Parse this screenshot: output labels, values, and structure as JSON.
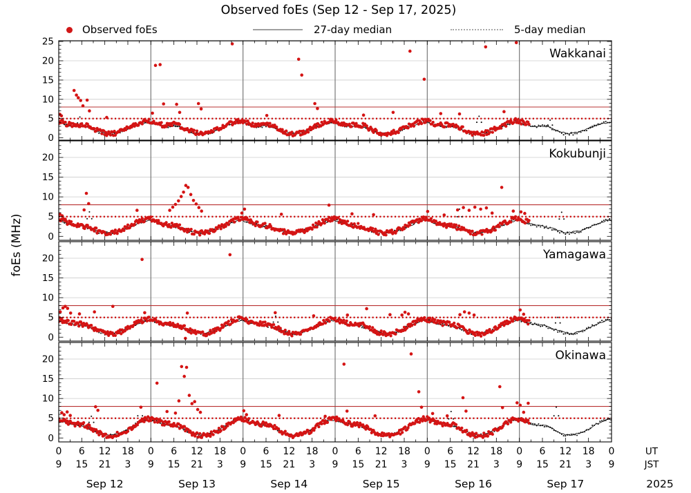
{
  "title": "Observed foEs (Sep 12 - Sep 17, 2025)",
  "legend": [
    {
      "label": "Observed foEs",
      "marker": "red-dot",
      "color": "#d11717"
    },
    {
      "label": "27-day median",
      "marker": "solid-line",
      "color": "#a0a0a0"
    },
    {
      "label": "5-day median",
      "marker": "dotted-line",
      "color": "#a8a8a8"
    }
  ],
  "y_axis_label": "foEs (MHz)",
  "colors": {
    "observed": "#d41414",
    "median_line": "#111111",
    "median5_dots": "#111111",
    "threshold_solid_red": "#b83030",
    "threshold_dotted_red": "#cc0000",
    "day_line": "#787878",
    "grid_line": "#cbcbcb"
  },
  "x_axis": {
    "ut_tick_labels": [
      0,
      6,
      12,
      18
    ],
    "jst_tick_labels": [
      9,
      15,
      21,
      3
    ],
    "final_tick": {
      "ut": 0,
      "jst": 9
    },
    "unit_labels": [
      "UT",
      "JST"
    ],
    "dates": [
      "Sep 12",
      "Sep 13",
      "Sep 14",
      "Sep 15",
      "Sep 16",
      "Sep 17"
    ],
    "year": "2025",
    "hours_total": 144
  },
  "chart_data": {
    "type": "scatter",
    "title": "Observed foEs (Sep 12 - Sep 17, 2025)",
    "ylabel": "foEs (MHz)",
    "x_hours_total": 144,
    "observed_end_hour": 122.5,
    "thresholds": {
      "upper_solid_mhz": 8,
      "lower_dotted_mhz": 5
    },
    "panels": [
      {
        "station": "Wakkanai",
        "ylim": [
          -0.6,
          25.2
        ],
        "ytick_labels": [
          0,
          5,
          10,
          15,
          20,
          25
        ],
        "grid_max": 25,
        "observed_daily": [
          4.3,
          4.0,
          3.6,
          3.4,
          3.3,
          3.4,
          3.5,
          3.3,
          2.9,
          2.4,
          1.9,
          1.5,
          1.2,
          1.0,
          1.1,
          1.3,
          1.6,
          2.0,
          2.5,
          3.0,
          3.4,
          3.8,
          4.1,
          4.4
        ],
        "observed_spikes": [
          [
            0.3,
            6.1
          ],
          [
            0.7,
            5.7
          ],
          [
            4.0,
            12.3
          ],
          [
            4.6,
            11.1
          ],
          [
            5.1,
            10.4
          ],
          [
            5.7,
            9.7
          ],
          [
            6.3,
            8.3
          ],
          [
            7.4,
            9.8
          ],
          [
            8.0,
            7.0
          ],
          [
            12.5,
            5.3
          ],
          [
            24.4,
            6.4
          ],
          [
            25.2,
            18.8
          ],
          [
            26.4,
            19.0
          ],
          [
            27.3,
            8.8
          ],
          [
            30.7,
            8.7
          ],
          [
            31.5,
            6.6
          ],
          [
            36.4,
            8.9
          ],
          [
            37.1,
            7.5
          ],
          [
            45.2,
            24.4
          ],
          [
            54.2,
            5.8
          ],
          [
            62.5,
            20.4
          ],
          [
            63.3,
            16.3
          ],
          [
            66.7,
            8.9
          ],
          [
            67.4,
            7.6
          ],
          [
            79.4,
            5.9
          ],
          [
            87.1,
            6.6
          ],
          [
            91.5,
            22.5
          ],
          [
            95.2,
            15.2
          ],
          [
            99.5,
            6.3
          ],
          [
            104.4,
            6.2
          ],
          [
            111.2,
            23.6
          ],
          [
            116.0,
            6.8
          ],
          [
            119.2,
            24.7
          ]
        ],
        "median27_daily": [
          3.9,
          3.6,
          3.3,
          3.1,
          3.0,
          3.0,
          3.1,
          3.0,
          2.7,
          2.3,
          1.9,
          1.5,
          1.3,
          1.2,
          1.3,
          1.5,
          1.7,
          2.1,
          2.5,
          2.9,
          3.2,
          3.5,
          3.7,
          3.9
        ],
        "median5_daily": [
          4.1,
          3.7,
          3.3,
          3.0,
          2.9,
          3.0,
          3.2,
          3.0,
          2.6,
          2.1,
          1.6,
          1.2,
          1.0,
          0.9,
          1.0,
          1.2,
          1.5,
          1.9,
          2.4,
          2.9,
          3.3,
          3.6,
          3.9,
          4.1
        ],
        "median5_spikes": [
          [
            5.5,
            5.4
          ],
          [
            109.5,
            5.6
          ],
          [
            128.0,
            4.6
          ]
        ]
      },
      {
        "station": "Kokubunji",
        "ylim": [
          -1,
          24.2
        ],
        "ytick_labels": [
          0,
          5,
          10,
          15,
          20
        ],
        "grid_max": 20,
        "observed_daily": [
          4.4,
          4.1,
          3.7,
          3.3,
          3.0,
          2.8,
          2.7,
          2.5,
          2.2,
          1.8,
          1.4,
          1.1,
          0.9,
          0.8,
          0.9,
          1.1,
          1.4,
          1.8,
          2.3,
          2.8,
          3.3,
          3.8,
          4.2,
          4.5
        ],
        "observed_spikes": [
          [
            0.3,
            5.6
          ],
          [
            0.9,
            5.2
          ],
          [
            6.6,
            6.7
          ],
          [
            7.2,
            10.9
          ],
          [
            7.8,
            8.3
          ],
          [
            20.4,
            6.6
          ],
          [
            28.9,
            6.6
          ],
          [
            29.7,
            7.4
          ],
          [
            30.4,
            8.1
          ],
          [
            31.2,
            9.0
          ],
          [
            31.9,
            10.1
          ],
          [
            32.5,
            11.2
          ],
          [
            33.1,
            12.9
          ],
          [
            33.7,
            12.4
          ],
          [
            34.4,
            10.6
          ],
          [
            35.1,
            9.1
          ],
          [
            35.8,
            8.2
          ],
          [
            36.5,
            7.3
          ],
          [
            37.2,
            6.4
          ],
          [
            47.7,
            5.9
          ],
          [
            48.4,
            6.9
          ],
          [
            58.0,
            5.6
          ],
          [
            70.4,
            7.9
          ],
          [
            76.4,
            5.7
          ],
          [
            82.0,
            5.5
          ],
          [
            96.1,
            6.3
          ],
          [
            100.4,
            5.4
          ],
          [
            103.9,
            6.7
          ],
          [
            105.4,
            7.3
          ],
          [
            106.9,
            6.6
          ],
          [
            108.4,
            7.4
          ],
          [
            109.9,
            6.9
          ],
          [
            111.4,
            7.2
          ],
          [
            112.9,
            5.9
          ],
          [
            115.4,
            12.4
          ],
          [
            118.4,
            6.4
          ],
          [
            120.4,
            6.2
          ],
          [
            121.4,
            5.8
          ]
        ],
        "median27_daily": [
          4.0,
          3.7,
          3.4,
          3.1,
          2.9,
          2.7,
          2.6,
          2.4,
          2.1,
          1.8,
          1.5,
          1.2,
          1.0,
          1.0,
          1.1,
          1.3,
          1.5,
          1.8,
          2.2,
          2.6,
          3.0,
          3.4,
          3.7,
          4.0
        ],
        "median5_daily": [
          4.2,
          3.8,
          3.4,
          3.0,
          2.8,
          2.6,
          2.5,
          2.3,
          2.0,
          1.6,
          1.2,
          0.9,
          0.8,
          0.8,
          0.9,
          1.1,
          1.4,
          1.7,
          2.1,
          2.6,
          3.1,
          3.5,
          3.9,
          4.2
        ],
        "median5_spikes": [
          [
            8.0,
            6.2
          ],
          [
            104.4,
            6.9
          ],
          [
            131.0,
            6.1
          ]
        ]
      },
      {
        "station": "Yamagawa",
        "ylim": [
          -1,
          24.2
        ],
        "ytick_labels": [
          0,
          5,
          10,
          15,
          20
        ],
        "grid_max": 20,
        "observed_daily": [
          4.5,
          4.2,
          3.9,
          3.6,
          3.5,
          3.4,
          3.3,
          3.1,
          2.7,
          2.2,
          1.7,
          1.3,
          1.0,
          0.8,
          0.8,
          1.0,
          1.3,
          1.7,
          2.2,
          2.8,
          3.4,
          3.9,
          4.3,
          4.6
        ],
        "observed_spikes": [
          [
            0.4,
            6.4
          ],
          [
            1.1,
            7.4
          ],
          [
            1.7,
            7.8
          ],
          [
            2.3,
            7.3
          ],
          [
            3.1,
            6.1
          ],
          [
            5.4,
            5.9
          ],
          [
            9.3,
            6.4
          ],
          [
            14.1,
            7.8
          ],
          [
            21.7,
            19.7
          ],
          [
            22.4,
            6.2
          ],
          [
            33.0,
            -0.3
          ],
          [
            33.5,
            6.1
          ],
          [
            44.6,
            20.9
          ],
          [
            56.4,
            6.2
          ],
          [
            66.4,
            5.4
          ],
          [
            75.2,
            5.6
          ],
          [
            80.2,
            7.2
          ],
          [
            86.3,
            5.7
          ],
          [
            89.4,
            5.6
          ],
          [
            90.2,
            6.3
          ],
          [
            91.1,
            5.9
          ],
          [
            104.5,
            5.7
          ],
          [
            105.7,
            6.4
          ],
          [
            106.9,
            6.1
          ],
          [
            108.2,
            5.6
          ],
          [
            120.2,
            6.9
          ],
          [
            121.1,
            5.8
          ]
        ],
        "median27_daily": [
          4.2,
          3.9,
          3.6,
          3.4,
          3.2,
          3.1,
          3.0,
          2.8,
          2.5,
          2.1,
          1.7,
          1.4,
          1.1,
          1.0,
          1.0,
          1.2,
          1.4,
          1.8,
          2.2,
          2.7,
          3.1,
          3.5,
          3.9,
          4.2
        ],
        "median5_daily": [
          4.4,
          4.0,
          3.7,
          3.4,
          3.2,
          3.0,
          2.9,
          2.7,
          2.3,
          1.9,
          1.5,
          1.1,
          0.9,
          0.8,
          0.9,
          1.1,
          1.3,
          1.7,
          2.2,
          2.8,
          3.3,
          3.8,
          4.1,
          4.4
        ],
        "median5_spikes": [
          [
            56.5,
            5.3
          ],
          [
            130.0,
            5.0
          ]
        ]
      },
      {
        "station": "Okinawa",
        "ylim": [
          -1,
          24.2
        ],
        "ytick_labels": [
          0,
          5,
          10,
          15,
          20
        ],
        "grid_max": 20,
        "observed_daily": [
          4.8,
          4.5,
          4.1,
          3.8,
          3.6,
          3.5,
          3.4,
          3.2,
          2.8,
          2.2,
          1.6,
          1.1,
          0.8,
          0.6,
          0.6,
          0.8,
          1.1,
          1.5,
          2.1,
          2.7,
          3.4,
          4.0,
          4.5,
          4.9
        ],
        "observed_spikes": [
          [
            0.8,
            6.4
          ],
          [
            1.4,
            5.9
          ],
          [
            2.2,
            6.6
          ],
          [
            3.0,
            5.7
          ],
          [
            9.6,
            7.9
          ],
          [
            10.2,
            7.0
          ],
          [
            21.4,
            7.8
          ],
          [
            25.6,
            13.9
          ],
          [
            28.2,
            6.7
          ],
          [
            30.4,
            6.3
          ],
          [
            31.3,
            9.4
          ],
          [
            32.0,
            18.1
          ],
          [
            32.7,
            15.6
          ],
          [
            33.3,
            17.9
          ],
          [
            34.0,
            10.8
          ],
          [
            34.7,
            8.7
          ],
          [
            35.4,
            9.2
          ],
          [
            36.2,
            7.2
          ],
          [
            36.9,
            6.5
          ],
          [
            48.2,
            6.9
          ],
          [
            48.9,
            5.9
          ],
          [
            57.4,
            5.7
          ],
          [
            69.4,
            5.5
          ],
          [
            72.4,
            5.3
          ],
          [
            74.3,
            18.7
          ],
          [
            75.1,
            6.8
          ],
          [
            82.4,
            5.6
          ],
          [
            91.8,
            21.3
          ],
          [
            93.8,
            11.7
          ],
          [
            94.5,
            7.8
          ],
          [
            97.4,
            6.2
          ],
          [
            101.2,
            5.6
          ],
          [
            105.3,
            10.2
          ],
          [
            106.1,
            6.8
          ],
          [
            114.9,
            13.0
          ],
          [
            115.6,
            7.7
          ],
          [
            119.4,
            8.9
          ],
          [
            120.2,
            8.3
          ],
          [
            121.1,
            6.5
          ],
          [
            122.3,
            8.8
          ]
        ],
        "median27_daily": [
          4.5,
          4.2,
          3.9,
          3.6,
          3.4,
          3.3,
          3.2,
          3.0,
          2.6,
          2.1,
          1.6,
          1.2,
          0.9,
          0.8,
          0.8,
          1.0,
          1.3,
          1.7,
          2.2,
          2.8,
          3.4,
          3.9,
          4.3,
          4.6
        ],
        "median5_daily": [
          4.7,
          4.3,
          4.0,
          3.7,
          3.5,
          3.3,
          3.2,
          2.9,
          2.5,
          2.0,
          1.4,
          1.0,
          0.7,
          0.6,
          0.7,
          0.9,
          1.2,
          1.6,
          2.2,
          2.9,
          3.5,
          4.1,
          4.5,
          4.8
        ],
        "median5_spikes": [
          [
            8.5,
            5.5
          ],
          [
            21.2,
            7.8
          ],
          [
            102.2,
            6.7
          ],
          [
            129.6,
            7.8
          ]
        ]
      }
    ]
  }
}
